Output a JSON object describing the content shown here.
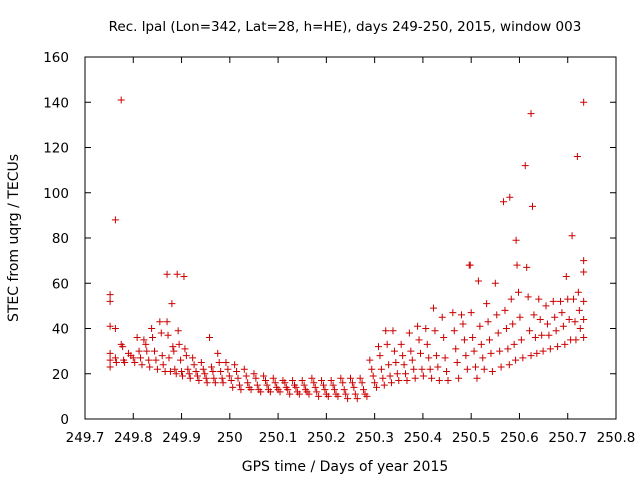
{
  "chart_data": {
    "type": "scatter",
    "title": "Rec. lpal (Lon=342, Lat=28, h=HE), days 249-250, 2015, window 003",
    "xlabel": "GPS time / Days of year 2015",
    "ylabel": "STEC from uqrg / TECUs",
    "xlim": [
      249.7,
      250.8
    ],
    "ylim": [
      0,
      160
    ],
    "x_ticks": [
      249.7,
      249.8,
      249.9,
      250.0,
      250.1,
      250.2,
      250.3,
      250.4,
      250.5,
      250.6,
      250.7,
      250.8
    ],
    "x_tick_labels": [
      "249.7",
      "249.8",
      "249.9",
      "250",
      "250.1",
      "250.2",
      "250.3",
      "250.4",
      "250.5",
      "250.6",
      "250.7",
      "250.8"
    ],
    "y_ticks": [
      0,
      20,
      40,
      60,
      80,
      100,
      120,
      140,
      160
    ],
    "y_tick_labels": [
      "0",
      "20",
      "40",
      "60",
      "80",
      "100",
      "120",
      "140",
      "160"
    ],
    "grid": false,
    "marker": "plus",
    "color": "#cc0000",
    "series": [
      {
        "points": [
          [
            249.752,
            55
          ],
          [
            249.752,
            52
          ],
          [
            249.752,
            41
          ],
          [
            249.752,
            29
          ],
          [
            249.752,
            26
          ],
          [
            249.752,
            23
          ],
          [
            249.763,
            88
          ],
          [
            249.763,
            40
          ],
          [
            249.763,
            27
          ],
          [
            249.765,
            25
          ],
          [
            249.775,
            141
          ],
          [
            249.775,
            33
          ],
          [
            249.778,
            32
          ],
          [
            249.78,
            26
          ],
          [
            249.782,
            25
          ],
          [
            249.79,
            29
          ],
          [
            249.795,
            28
          ],
          [
            249.8,
            27
          ],
          [
            249.803,
            25
          ],
          [
            249.808,
            36
          ],
          [
            249.812,
            30
          ],
          [
            249.815,
            27
          ],
          [
            249.818,
            24
          ],
          [
            249.822,
            35
          ],
          [
            249.826,
            33
          ],
          [
            249.828,
            30
          ],
          [
            249.832,
            26
          ],
          [
            249.834,
            23
          ],
          [
            249.838,
            40
          ],
          [
            249.84,
            36
          ],
          [
            249.844,
            30
          ],
          [
            249.847,
            26
          ],
          [
            249.85,
            22
          ],
          [
            249.855,
            43
          ],
          [
            249.858,
            38
          ],
          [
            249.86,
            28
          ],
          [
            249.862,
            24
          ],
          [
            249.866,
            21
          ],
          [
            249.87,
            64
          ],
          [
            249.87,
            43
          ],
          [
            249.872,
            37
          ],
          [
            249.874,
            27
          ],
          [
            249.877,
            21
          ],
          [
            249.88,
            51
          ],
          [
            249.882,
            32
          ],
          [
            249.884,
            30
          ],
          [
            249.886,
            22
          ],
          [
            249.889,
            20
          ],
          [
            249.891,
            64
          ],
          [
            249.893,
            39
          ],
          [
            249.895,
            33
          ],
          [
            249.898,
            26
          ],
          [
            249.9,
            21
          ],
          [
            249.902,
            19
          ],
          [
            249.905,
            63
          ],
          [
            249.907,
            31
          ],
          [
            249.91,
            28
          ],
          [
            249.913,
            22
          ],
          [
            249.916,
            20
          ],
          [
            249.918,
            18
          ],
          [
            249.923,
            27
          ],
          [
            249.926,
            24
          ],
          [
            249.93,
            21
          ],
          [
            249.933,
            19
          ],
          [
            249.936,
            17
          ],
          [
            249.941,
            25
          ],
          [
            249.945,
            22
          ],
          [
            249.948,
            20
          ],
          [
            249.951,
            18
          ],
          [
            249.953,
            16
          ],
          [
            249.958,
            36
          ],
          [
            249.962,
            23
          ],
          [
            249.965,
            21
          ],
          [
            249.967,
            18
          ],
          [
            249.97,
            16
          ],
          [
            249.975,
            29
          ],
          [
            249.978,
            25
          ],
          [
            249.981,
            21
          ],
          [
            249.984,
            18
          ],
          [
            249.986,
            16
          ],
          [
            249.992,
            25
          ],
          [
            249.996,
            22
          ],
          [
            249.999,
            19
          ],
          [
            250.003,
            17
          ],
          [
            250.006,
            14
          ],
          [
            250.01,
            24
          ],
          [
            250.014,
            21
          ],
          [
            250.017,
            18
          ],
          [
            250.02,
            15
          ],
          [
            250.023,
            13
          ],
          [
            250.03,
            22
          ],
          [
            250.034,
            19
          ],
          [
            250.037,
            16
          ],
          [
            250.04,
            14
          ],
          [
            250.044,
            13
          ],
          [
            250.05,
            20
          ],
          [
            250.054,
            18
          ],
          [
            250.057,
            15
          ],
          [
            250.06,
            13
          ],
          [
            250.064,
            12
          ],
          [
            250.07,
            19
          ],
          [
            250.074,
            17
          ],
          [
            250.077,
            15
          ],
          [
            250.08,
            13
          ],
          [
            250.084,
            12
          ],
          [
            250.09,
            18
          ],
          [
            250.094,
            16
          ],
          [
            250.097,
            14
          ],
          [
            250.1,
            13
          ],
          [
            250.104,
            12
          ],
          [
            250.11,
            17
          ],
          [
            250.114,
            16
          ],
          [
            250.117,
            14
          ],
          [
            250.12,
            13
          ],
          [
            250.124,
            11
          ],
          [
            250.13,
            17
          ],
          [
            250.134,
            15
          ],
          [
            250.137,
            14
          ],
          [
            250.14,
            12
          ],
          [
            250.144,
            11
          ],
          [
            250.15,
            17
          ],
          [
            250.154,
            15
          ],
          [
            250.157,
            13
          ],
          [
            250.16,
            12
          ],
          [
            250.164,
            11
          ],
          [
            250.17,
            18
          ],
          [
            250.174,
            16
          ],
          [
            250.177,
            14
          ],
          [
            250.18,
            12
          ],
          [
            250.184,
            10
          ],
          [
            250.19,
            17
          ],
          [
            250.194,
            15
          ],
          [
            250.197,
            13
          ],
          [
            250.2,
            11
          ],
          [
            250.204,
            10
          ],
          [
            250.21,
            17
          ],
          [
            250.214,
            15
          ],
          [
            250.217,
            13
          ],
          [
            250.22,
            11
          ],
          [
            250.224,
            10
          ],
          [
            250.23,
            18
          ],
          [
            250.234,
            16
          ],
          [
            250.237,
            13
          ],
          [
            250.24,
            11
          ],
          [
            250.244,
            9
          ],
          [
            250.25,
            18
          ],
          [
            250.254,
            16
          ],
          [
            250.257,
            14
          ],
          [
            250.26,
            11
          ],
          [
            250.264,
            9
          ],
          [
            250.27,
            18
          ],
          [
            250.274,
            16
          ],
          [
            250.277,
            13
          ],
          [
            250.28,
            11
          ],
          [
            250.284,
            10
          ],
          [
            250.29,
            26
          ],
          [
            250.294,
            22
          ],
          [
            250.297,
            19
          ],
          [
            250.3,
            16
          ],
          [
            250.304,
            14
          ],
          [
            250.308,
            32
          ],
          [
            250.311,
            28
          ],
          [
            250.314,
            22
          ],
          [
            250.317,
            18
          ],
          [
            250.32,
            15
          ],
          [
            250.323,
            39
          ],
          [
            250.326,
            33
          ],
          [
            250.329,
            24
          ],
          [
            250.332,
            19
          ],
          [
            250.335,
            16
          ],
          [
            250.338,
            39
          ],
          [
            250.341,
            30
          ],
          [
            250.344,
            25
          ],
          [
            250.347,
            20
          ],
          [
            250.35,
            17
          ],
          [
            250.355,
            33
          ],
          [
            250.358,
            28
          ],
          [
            250.361,
            24
          ],
          [
            250.364,
            20
          ],
          [
            250.367,
            17
          ],
          [
            250.372,
            38
          ],
          [
            250.375,
            30
          ],
          [
            250.378,
            26
          ],
          [
            250.381,
            22
          ],
          [
            250.384,
            18
          ],
          [
            250.389,
            41
          ],
          [
            250.392,
            35
          ],
          [
            250.395,
            29
          ],
          [
            250.398,
            22
          ],
          [
            250.401,
            19
          ],
          [
            250.406,
            40
          ],
          [
            250.409,
            33
          ],
          [
            250.412,
            27
          ],
          [
            250.415,
            22
          ],
          [
            250.418,
            18
          ],
          [
            250.422,
            49
          ],
          [
            250.425,
            39
          ],
          [
            250.428,
            28
          ],
          [
            250.431,
            23
          ],
          [
            250.434,
            17
          ],
          [
            250.44,
            45
          ],
          [
            250.443,
            36
          ],
          [
            250.446,
            27
          ],
          [
            250.449,
            21
          ],
          [
            250.452,
            17
          ],
          [
            250.462,
            47
          ],
          [
            250.465,
            39
          ],
          [
            250.468,
            31
          ],
          [
            250.471,
            25
          ],
          [
            250.474,
            18
          ],
          [
            250.48,
            46
          ],
          [
            250.483,
            42
          ],
          [
            250.486,
            35
          ],
          [
            250.489,
            28
          ],
          [
            250.492,
            22
          ],
          [
            250.496,
            68
          ],
          [
            250.498,
            68
          ],
          [
            250.5,
            47
          ],
          [
            250.503,
            36
          ],
          [
            250.506,
            30
          ],
          [
            250.509,
            23
          ],
          [
            250.512,
            18
          ],
          [
            250.515,
            61
          ],
          [
            250.518,
            41
          ],
          [
            250.521,
            33
          ],
          [
            250.524,
            27
          ],
          [
            250.527,
            22
          ],
          [
            250.532,
            51
          ],
          [
            250.535,
            43
          ],
          [
            250.538,
            35
          ],
          [
            250.541,
            29
          ],
          [
            250.544,
            21
          ],
          [
            250.55,
            60
          ],
          [
            250.553,
            46
          ],
          [
            250.556,
            38
          ],
          [
            250.559,
            30
          ],
          [
            250.562,
            23
          ],
          [
            250.567,
            96
          ],
          [
            250.57,
            48
          ],
          [
            250.573,
            40
          ],
          [
            250.576,
            31
          ],
          [
            250.579,
            24
          ],
          [
            250.58,
            98
          ],
          [
            250.583,
            53
          ],
          [
            250.586,
            42
          ],
          [
            250.589,
            33
          ],
          [
            250.592,
            26
          ],
          [
            250.593,
            79
          ],
          [
            250.595,
            68
          ],
          [
            250.598,
            56
          ],
          [
            250.601,
            45
          ],
          [
            250.604,
            35
          ],
          [
            250.607,
            27
          ],
          [
            250.612,
            112
          ],
          [
            250.615,
            67
          ],
          [
            250.618,
            54
          ],
          [
            250.621,
            39
          ],
          [
            250.624,
            28
          ],
          [
            250.624,
            135
          ],
          [
            250.627,
            94
          ],
          [
            250.63,
            46
          ],
          [
            250.633,
            36
          ],
          [
            250.636,
            29
          ],
          [
            250.64,
            53
          ],
          [
            250.643,
            44
          ],
          [
            250.646,
            37
          ],
          [
            250.649,
            30
          ],
          [
            250.655,
            50
          ],
          [
            250.658,
            42
          ],
          [
            250.661,
            37
          ],
          [
            250.664,
            31
          ],
          [
            250.67,
            52
          ],
          [
            250.673,
            45
          ],
          [
            250.676,
            39
          ],
          [
            250.679,
            32
          ],
          [
            250.685,
            52
          ],
          [
            250.688,
            47
          ],
          [
            250.691,
            41
          ],
          [
            250.694,
            33
          ],
          [
            250.697,
            63
          ],
          [
            250.7,
            53
          ],
          [
            250.703,
            44
          ],
          [
            250.706,
            35
          ],
          [
            250.709,
            81
          ],
          [
            250.712,
            53
          ],
          [
            250.715,
            43
          ],
          [
            250.717,
            35
          ],
          [
            250.72,
            116
          ],
          [
            250.722,
            56
          ],
          [
            250.724,
            48
          ],
          [
            250.726,
            40
          ],
          [
            250.733,
            140
          ],
          [
            250.733,
            70
          ],
          [
            250.733,
            65
          ],
          [
            250.733,
            52
          ],
          [
            250.733,
            44
          ],
          [
            250.733,
            36
          ]
        ]
      }
    ]
  }
}
